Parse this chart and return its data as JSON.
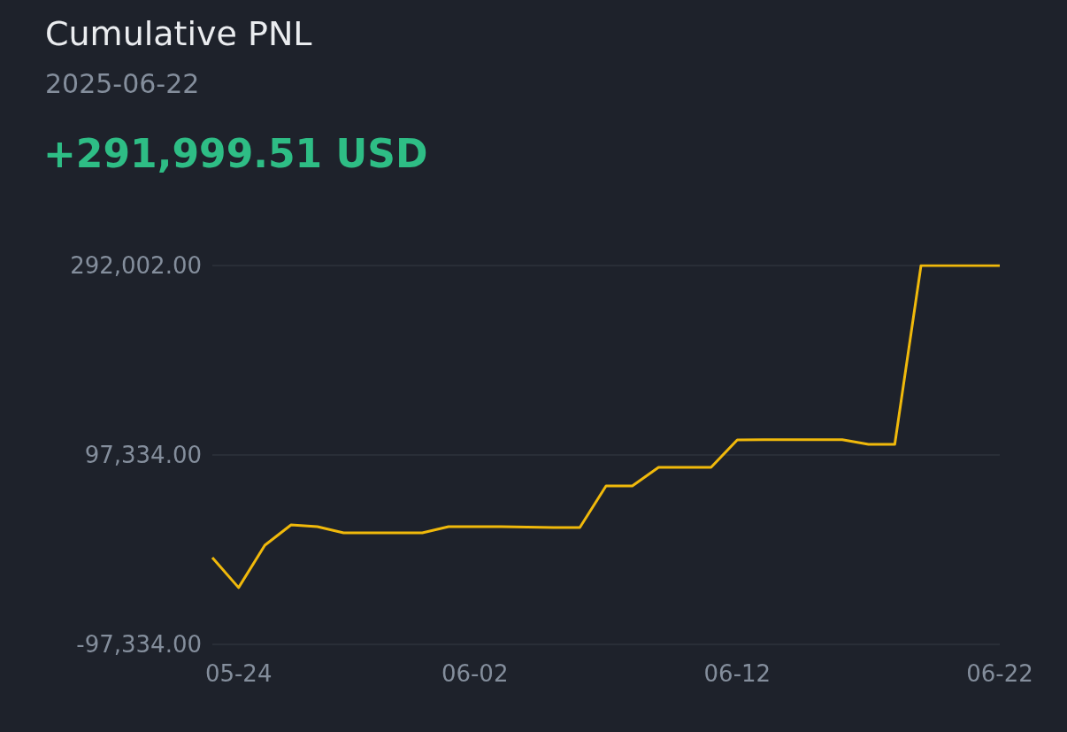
{
  "chart_data": {
    "type": "line",
    "title": "Cumulative PNL",
    "subtitle": "2025-06-22",
    "annotations": [
      "+291,999.51 USD"
    ],
    "x": [
      "2025-05-23",
      "2025-05-24",
      "2025-05-25",
      "2025-05-26",
      "2025-05-27",
      "2025-05-28",
      "2025-05-29",
      "2025-05-30",
      "2025-05-31",
      "2025-06-01",
      "2025-06-02",
      "2025-06-03",
      "2025-06-04",
      "2025-06-05",
      "2025-06-06",
      "2025-06-07",
      "2025-06-08",
      "2025-06-09",
      "2025-06-10",
      "2025-06-11",
      "2025-06-12",
      "2025-06-13",
      "2025-06-14",
      "2025-06-15",
      "2025-06-16",
      "2025-06-17",
      "2025-06-18",
      "2025-06-19",
      "2025-06-20",
      "2025-06-21",
      "2025-06-22"
    ],
    "values": [
      -8200,
      -39000,
      4500,
      25500,
      23700,
      17300,
      17300,
      17300,
      17300,
      23700,
      23700,
      23600,
      23200,
      22700,
      22700,
      65500,
      65500,
      84600,
      84600,
      84600,
      112800,
      113000,
      113000,
      113000,
      113000,
      108300,
      108300,
      292000,
      292000,
      292000,
      292000
    ],
    "color": "#f0b90b",
    "xlim": [
      "2025-05-23",
      "2025-06-22"
    ],
    "xticks": [
      {
        "value": "2025-05-24",
        "label": "05-24"
      },
      {
        "value": "2025-06-02",
        "label": "06-02"
      },
      {
        "value": "2025-06-12",
        "label": "06-12"
      },
      {
        "value": "2025-06-22",
        "label": "06-22"
      }
    ],
    "ylim": [
      -97334,
      292002
    ],
    "yticks": [
      {
        "value": -97334,
        "label": "-97,334.00"
      },
      {
        "value": 97334,
        "label": "97,334.00"
      },
      {
        "value": 292002,
        "label": "292,002.00"
      }
    ],
    "grid": "y"
  }
}
